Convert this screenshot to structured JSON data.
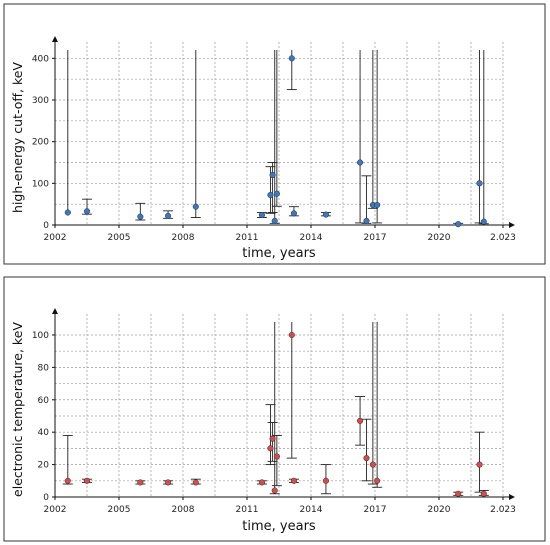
{
  "chart_data": [
    {
      "type": "scatter",
      "title": "",
      "xlabel": "time, years",
      "ylabel": "high-energy cut-off, keV",
      "xlim": [
        2002,
        2023
      ],
      "ylim": [
        0,
        420
      ],
      "x_ticks": [
        "2002",
        "2005",
        "2008",
        "2011",
        "2014",
        "2017",
        "2020",
        "2.023"
      ],
      "x_tick_values": [
        2002,
        2005,
        2008,
        2011,
        2014,
        2017,
        2020,
        2023
      ],
      "y_ticks": [
        "0",
        "100",
        "200",
        "300",
        "400"
      ],
      "y_tick_values": [
        0,
        100,
        200,
        300,
        400
      ],
      "grid": true,
      "marker_color": "#3a78c4",
      "series": [
        {
          "points": [
            {
              "x": 2002.6,
              "y": 30,
              "lo": null,
              "hi": 420
            },
            {
              "x": 2003.5,
              "y": 33,
              "lo": 26,
              "hi": 62
            },
            {
              "x": 2006.0,
              "y": 20,
              "lo": 12,
              "hi": 52
            },
            {
              "x": 2007.3,
              "y": 22,
              "lo": 16,
              "hi": 34
            },
            {
              "x": 2008.6,
              "y": 44,
              "lo": 18,
              "hi": 420
            },
            {
              "x": 2011.7,
              "y": 24,
              "lo": 18,
              "hi": 30
            },
            {
              "x": 2012.1,
              "y": 72,
              "lo": 28,
              "hi": 140
            },
            {
              "x": 2012.2,
              "y": 120,
              "lo": 30,
              "hi": 150
            },
            {
              "x": 2012.3,
              "y": 10,
              "lo": 4,
              "hi": 420
            },
            {
              "x": 2012.4,
              "y": 75,
              "lo": 45,
              "hi": 420
            },
            {
              "x": 2013.1,
              "y": 400,
              "lo": 325,
              "hi": 420
            },
            {
              "x": 2013.2,
              "y": 28,
              "lo": 22,
              "hi": 44
            },
            {
              "x": 2014.7,
              "y": 25,
              "lo": 22,
              "hi": 30
            },
            {
              "x": 2016.3,
              "y": 150,
              "lo": 5,
              "hi": 420
            },
            {
              "x": 2016.6,
              "y": 10,
              "lo": 4,
              "hi": 118
            },
            {
              "x": 2016.9,
              "y": 48,
              "lo": 40,
              "hi": 420
            },
            {
              "x": 2017.1,
              "y": 48,
              "lo": 5,
              "hi": 420
            },
            {
              "x": 2020.9,
              "y": 2,
              "lo": 0,
              "hi": 4
            },
            {
              "x": 2021.9,
              "y": 100,
              "lo": 5,
              "hi": 420
            },
            {
              "x": 2022.1,
              "y": 8,
              "lo": 3,
              "hi": 420
            }
          ]
        }
      ]
    },
    {
      "type": "scatter",
      "title": "",
      "xlabel": "time, years",
      "ylabel": "electronic temperature, keV",
      "xlim": [
        2002,
        2023
      ],
      "ylim": [
        0,
        108
      ],
      "x_ticks": [
        "2002",
        "2005",
        "2008",
        "2011",
        "2014",
        "2017",
        "2020",
        "2.023"
      ],
      "x_tick_values": [
        2002,
        2005,
        2008,
        2011,
        2014,
        2017,
        2020,
        2023
      ],
      "y_ticks": [
        "0",
        "20",
        "40",
        "60",
        "80",
        "100"
      ],
      "y_tick_values": [
        0,
        20,
        40,
        60,
        80,
        100
      ],
      "grid": true,
      "marker_color": "#d94a4a",
      "series": [
        {
          "points": [
            {
              "x": 2002.6,
              "y": 10,
              "lo": 8,
              "hi": 38
            },
            {
              "x": 2003.5,
              "y": 10,
              "lo": 9,
              "hi": 11
            },
            {
              "x": 2006.0,
              "y": 9,
              "lo": 8,
              "hi": 10
            },
            {
              "x": 2007.3,
              "y": 9,
              "lo": 8,
              "hi": 10
            },
            {
              "x": 2008.6,
              "y": 9,
              "lo": 8,
              "hi": 11
            },
            {
              "x": 2011.7,
              "y": 9,
              "lo": 8,
              "hi": 10
            },
            {
              "x": 2012.1,
              "y": 30,
              "lo": 20,
              "hi": 57
            },
            {
              "x": 2012.2,
              "y": 36,
              "lo": 22,
              "hi": 46
            },
            {
              "x": 2012.3,
              "y": 4,
              "lo": 2,
              "hi": 108
            },
            {
              "x": 2012.4,
              "y": 25,
              "lo": 7,
              "hi": 38
            },
            {
              "x": 2013.1,
              "y": 100,
              "lo": 24,
              "hi": 108
            },
            {
              "x": 2013.2,
              "y": 10,
              "lo": 9,
              "hi": 11
            },
            {
              "x": 2014.7,
              "y": 10,
              "lo": 2,
              "hi": 20
            },
            {
              "x": 2016.3,
              "y": 47,
              "lo": 32,
              "hi": 62
            },
            {
              "x": 2016.6,
              "y": 24,
              "lo": 10,
              "hi": 48
            },
            {
              "x": 2016.9,
              "y": 20,
              "lo": 8,
              "hi": 108
            },
            {
              "x": 2017.1,
              "y": 10,
              "lo": 6,
              "hi": 108
            },
            {
              "x": 2020.9,
              "y": 2,
              "lo": 1,
              "hi": 3
            },
            {
              "x": 2021.9,
              "y": 20,
              "lo": 3,
              "hi": 40
            },
            {
              "x": 2022.1,
              "y": 2,
              "lo": 1,
              "hi": 4
            }
          ]
        }
      ]
    }
  ]
}
